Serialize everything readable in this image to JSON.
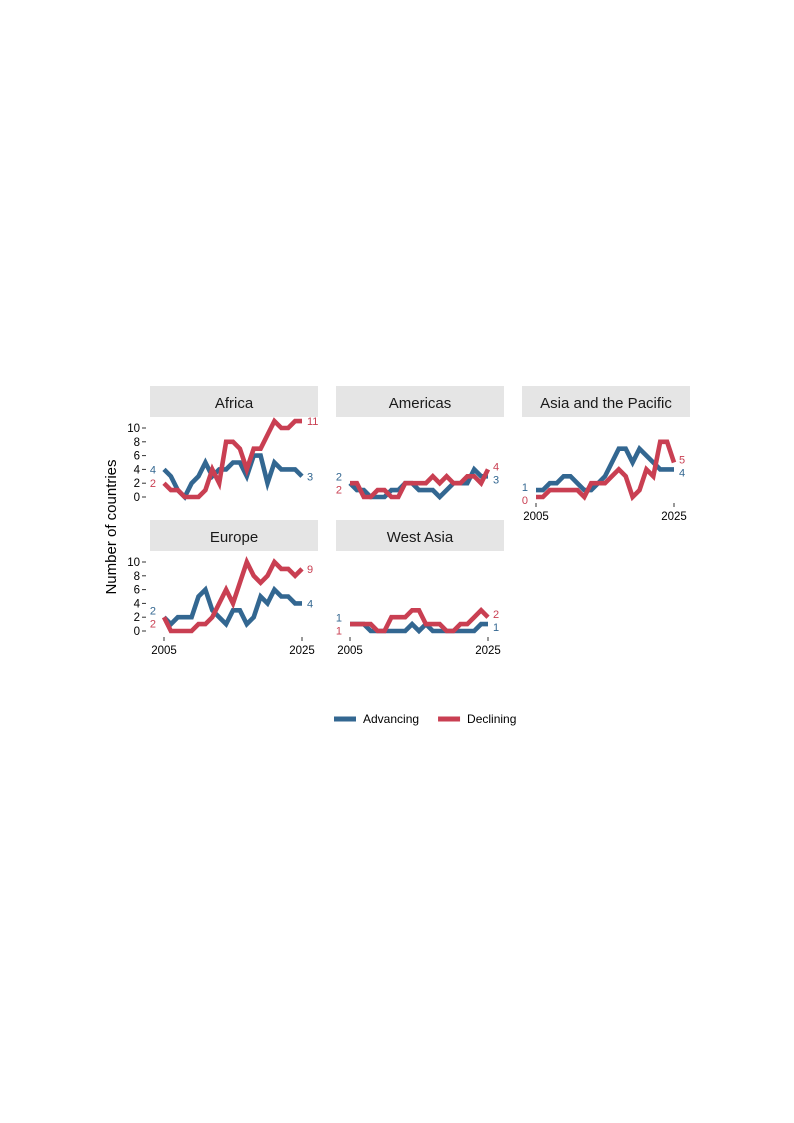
{
  "chart_data": {
    "type": "line",
    "ylabel": "Number of countries",
    "xlim": [
      2005,
      2025
    ],
    "ylim": [
      0,
      11
    ],
    "x_ticks": [
      "2005",
      "2025"
    ],
    "y_ticks": [
      "0",
      "2",
      "4",
      "6",
      "8",
      "10"
    ],
    "colors": {
      "Advancing": "#336791",
      "Declining": "#c93f52"
    },
    "legend": {
      "position": "bottom",
      "entries": [
        "Advancing",
        "Declining"
      ]
    },
    "years": [
      2005,
      2006,
      2007,
      2008,
      2009,
      2010,
      2011,
      2012,
      2013,
      2014,
      2015,
      2016,
      2017,
      2018,
      2019,
      2020,
      2021,
      2022,
      2023,
      2024,
      2025
    ],
    "panels": [
      {
        "title": "Africa",
        "series": [
          {
            "name": "Advancing",
            "values": [
              4,
              3,
              1,
              0,
              2,
              3,
              5,
              3,
              4,
              4,
              5,
              5,
              3,
              6,
              6,
              2,
              5,
              4,
              4,
              4,
              3
            ],
            "end_label": "3",
            "start_label": "4"
          },
          {
            "name": "Declining",
            "values": [
              2,
              1,
              1,
              0,
              0,
              0,
              1,
              4,
              2,
              8,
              8,
              7,
              4,
              7,
              7,
              9,
              11,
              10,
              10,
              11,
              11
            ],
            "end_label": "11",
            "start_label": "2"
          }
        ]
      },
      {
        "title": "Americas",
        "series": [
          {
            "name": "Advancing",
            "values": [
              2,
              1,
              1,
              0,
              0,
              0,
              1,
              1,
              2,
              2,
              1,
              1,
              1,
              0,
              1,
              2,
              2,
              2,
              4,
              3,
              3
            ],
            "end_label": "3",
            "start_label": "2"
          },
          {
            "name": "Declining",
            "values": [
              2,
              2,
              0,
              0,
              1,
              1,
              0,
              0,
              2,
              2,
              2,
              2,
              3,
              2,
              3,
              2,
              2,
              3,
              3,
              2,
              4
            ],
            "end_label": "4",
            "start_label": "2"
          }
        ]
      },
      {
        "title": "Asia and the Pacific",
        "series": [
          {
            "name": "Advancing",
            "values": [
              1,
              1,
              2,
              2,
              3,
              3,
              2,
              1,
              1,
              2,
              3,
              5,
              7,
              7,
              5,
              7,
              6,
              5,
              4,
              4,
              4
            ],
            "end_label": "4",
            "start_label": "1"
          },
          {
            "name": "Declining",
            "values": [
              0,
              0,
              1,
              1,
              1,
              1,
              1,
              0,
              2,
              2,
              2,
              3,
              4,
              3,
              0,
              1,
              4,
              3,
              8,
              8,
              5
            ],
            "end_label": "5",
            "start_label": "0"
          }
        ]
      },
      {
        "title": "Europe",
        "series": [
          {
            "name": "Advancing",
            "values": [
              2,
              1,
              2,
              2,
              2,
              5,
              6,
              3,
              2,
              1,
              3,
              3,
              1,
              2,
              5,
              4,
              6,
              5,
              5,
              4,
              4
            ],
            "end_label": "4",
            "start_label": "2"
          },
          {
            "name": "Declining",
            "values": [
              2,
              0,
              0,
              0,
              0,
              1,
              1,
              2,
              4,
              6,
              4,
              7,
              10,
              8,
              7,
              8,
              10,
              9,
              9,
              8,
              9
            ],
            "end_label": "9",
            "start_label": "2"
          }
        ]
      },
      {
        "title": "West Asia",
        "series": [
          {
            "name": "Advancing",
            "values": [
              1,
              1,
              1,
              0,
              0,
              0,
              0,
              0,
              0,
              1,
              0,
              1,
              0,
              0,
              0,
              0,
              0,
              0,
              0,
              1,
              1
            ],
            "end_label": "1",
            "start_label": "1"
          },
          {
            "name": "Declining",
            "values": [
              1,
              1,
              1,
              1,
              0,
              0,
              2,
              2,
              2,
              3,
              3,
              1,
              1,
              1,
              0,
              0,
              1,
              1,
              2,
              3,
              2
            ],
            "end_label": "2",
            "start_label": "1"
          }
        ]
      }
    ]
  }
}
